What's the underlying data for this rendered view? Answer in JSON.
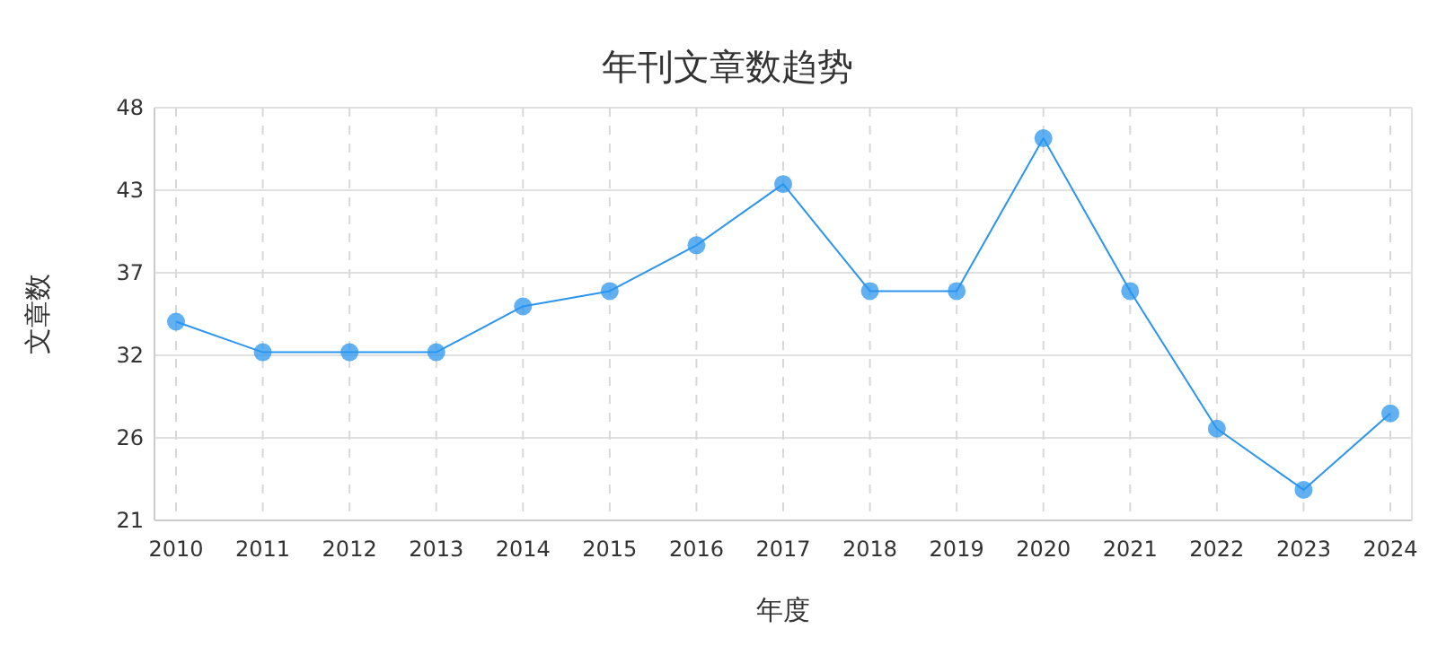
{
  "chart_data": {
    "type": "line",
    "title": "年刊文章数趋势",
    "xlabel": "年度",
    "ylabel": "文章数",
    "categories": [
      "2010",
      "2011",
      "2012",
      "2013",
      "2014",
      "2015",
      "2016",
      "2017",
      "2018",
      "2019",
      "2020",
      "2021",
      "2022",
      "2023",
      "2024"
    ],
    "series": [
      {
        "color": "#2b95ee",
        "values": [
          34,
          32,
          32,
          32,
          35,
          36,
          39,
          43,
          36,
          36,
          46,
          36,
          27,
          23,
          28
        ]
      }
    ],
    "ylim": [
      21,
      48
    ],
    "yticks": [
      21,
      {
        "value": 26.4,
        "label": "26"
      },
      {
        "value": 31.8,
        "label": "32"
      },
      {
        "value": 37.2,
        "label": "37"
      },
      {
        "value": 42.6,
        "label": "43"
      },
      48
    ],
    "grid": true,
    "marker": "circle",
    "line_style": "solid"
  }
}
